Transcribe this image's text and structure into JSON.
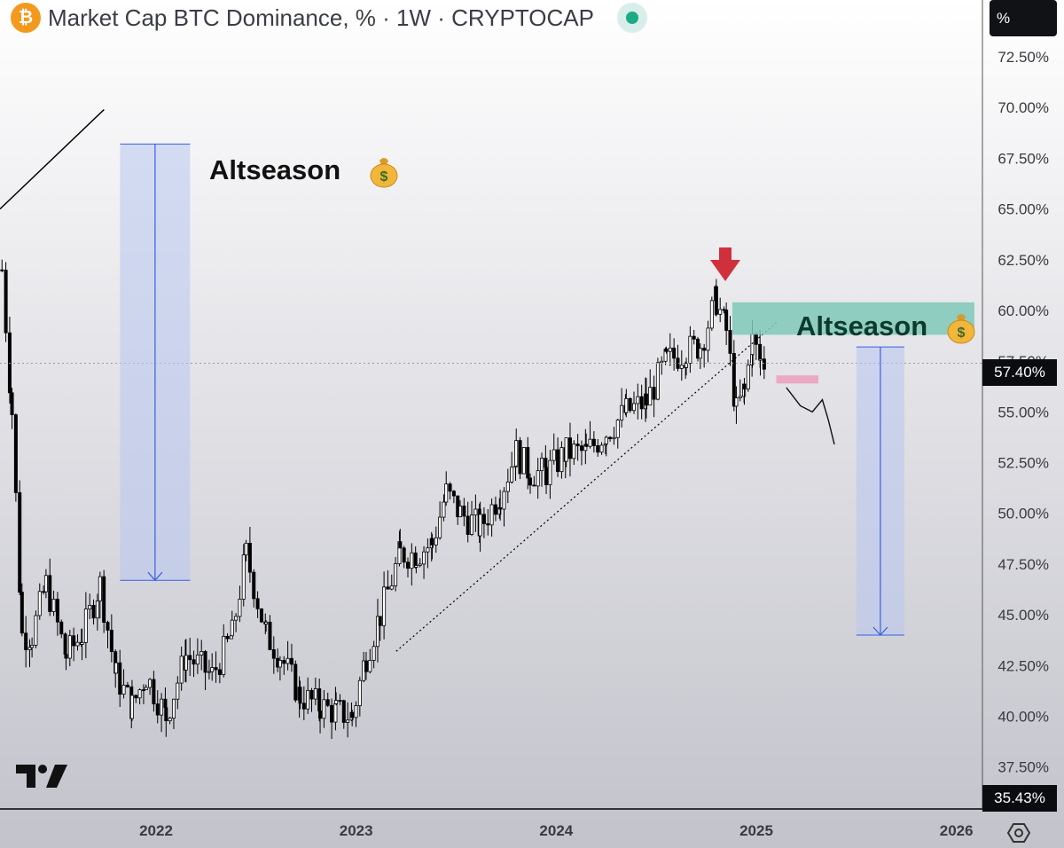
{
  "header": {
    "coin_symbol": "₿",
    "title": "Market Cap BTC Dominance, % · 1W · CRYPTOCAP"
  },
  "axis": {
    "unit_label": "%",
    "current_value_label": "57.40%",
    "bottom_value_label": "35.43%"
  },
  "annotations": {
    "left_label": "Altseason",
    "right_label": "Altseason",
    "money_icon": "money-bag-icon",
    "arrow_icon": "down-arrow-icon"
  },
  "colors": {
    "accent_red": "#d0303c",
    "zone_teal": "#7fc8b8",
    "zone_pink": "#eaa2bc",
    "arrow_blue": "#3a5ee0",
    "box_blue": "#b8c6f0"
  },
  "chart_data": {
    "type": "candlestick",
    "title": "Market Cap BTC Dominance, % · 1W · CRYPTOCAP",
    "ylim": [
      35.43,
      75.3
    ],
    "yticks": [
      "72.50%",
      "70.00%",
      "67.50%",
      "65.00%",
      "62.50%",
      "60.00%",
      "57.50%",
      "55.00%",
      "52.50%",
      "50.00%",
      "47.50%",
      "45.00%",
      "42.50%",
      "40.00%",
      "37.50%"
    ],
    "ytick_values": [
      72.5,
      70,
      67.5,
      65,
      62.5,
      60,
      57.5,
      55,
      52.5,
      50,
      47.5,
      45,
      42.5,
      40,
      37.5
    ],
    "xticks": [
      "2022",
      "2023",
      "2024",
      "2025",
      "2026"
    ],
    "xtick_values": [
      2022,
      2023,
      2024,
      2025,
      2026
    ],
    "xlim": [
      2021.22,
      2026.13
    ],
    "series": [
      {
        "name": "BTC Dominance weekly close (approx)",
        "x": [
          2021.23,
          2021.28,
          2021.33,
          2021.38,
          2021.45,
          2021.55,
          2021.63,
          2021.72,
          2021.8,
          2021.88,
          2021.95,
          2022.05,
          2022.15,
          2022.28,
          2022.38,
          2022.45,
          2022.55,
          2022.62,
          2022.72,
          2022.82,
          2022.9,
          2022.98,
          2023.05,
          2023.12,
          2023.22,
          2023.3,
          2023.38,
          2023.45,
          2023.52,
          2023.62,
          2023.72,
          2023.8,
          2023.87,
          2023.95,
          2024.05,
          2024.15,
          2024.25,
          2024.35,
          2024.45,
          2024.55,
          2024.65,
          2024.72,
          2024.8,
          2024.85,
          2024.9,
          2024.94,
          2024.98,
          2025.02,
          2025.05
        ],
        "values": [
          62,
          55,
          44,
          44,
          46.5,
          43,
          44,
          46.5,
          42,
          40.5,
          42,
          40,
          43,
          42,
          44,
          48,
          44,
          43,
          41,
          40.5,
          40.2,
          40,
          43,
          45,
          48,
          48,
          48.5,
          51,
          50,
          49.3,
          51,
          53,
          52,
          52,
          53,
          53,
          54,
          55,
          55.5,
          57.5,
          58,
          58.3,
          60.5,
          59,
          55,
          56,
          58.5,
          57.5,
          57.4
        ]
      }
    ],
    "lines": [
      {
        "name": "uptrend (dotted)",
        "from": [
          2023.2,
          43.2
        ],
        "to": [
          2025.1,
          59.4
        ]
      },
      {
        "name": "old trendline",
        "from": [
          2021.22,
          65.0
        ],
        "to": [
          2021.74,
          69.9
        ]
      }
    ],
    "zones": [
      {
        "name": "Altseason target box left",
        "x_range": [
          2021.82,
          2022.17
        ],
        "from": 68.2,
        "to": 46.7
      },
      {
        "name": "Altseason zone (teal)",
        "x_range": [
          2024.88,
          2026.09
        ],
        "from": 60.4,
        "to": 58.8
      },
      {
        "name": "Altseason target box right",
        "x_range": [
          2025.5,
          2025.74
        ],
        "from": 58.2,
        "to": 44.0
      },
      {
        "name": "support (pink)",
        "x_range": [
          2025.1,
          2025.31
        ],
        "from": 56.8,
        "to": 56.4
      }
    ],
    "projection": {
      "name": "projected path",
      "x": [
        2025.15,
        2025.22,
        2025.28,
        2025.33,
        2025.36,
        2025.39
      ],
      "values": [
        56.2,
        55.3,
        55.0,
        55.6,
        54.6,
        53.4
      ]
    }
  }
}
